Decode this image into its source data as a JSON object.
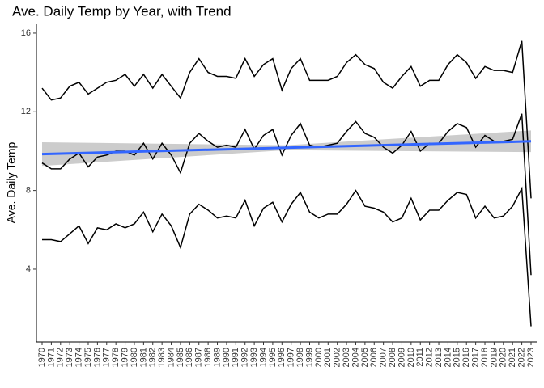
{
  "chart_data": {
    "type": "line",
    "title": "Ave. Daily Temp by Year, with Trend",
    "y_label": "Ave. Daily Temp",
    "categories": [
      "1970",
      "1971",
      "1972",
      "1973",
      "1974",
      "1975",
      "1976",
      "1977",
      "1978",
      "1979",
      "1980",
      "1981",
      "1982",
      "1983",
      "1984",
      "1985",
      "1986",
      "1987",
      "1988",
      "1989",
      "1990",
      "1991",
      "1992",
      "1993",
      "1994",
      "1995",
      "1996",
      "1997",
      "1998",
      "1999",
      "2000",
      "2001",
      "2002",
      "2003",
      "2004",
      "2005",
      "2006",
      "2007",
      "2008",
      "2009",
      "2010",
      "2011",
      "2012",
      "2013",
      "2014",
      "2015",
      "2016",
      "2017",
      "2018",
      "2019",
      "2020",
      "2021",
      "2022",
      "2023"
    ],
    "series": [
      {
        "color": "#000000",
        "values": [
          13.2,
          12.6,
          12.7,
          13.3,
          13.5,
          12.9,
          13.2,
          13.5,
          13.6,
          13.9,
          13.3,
          13.9,
          13.2,
          13.9,
          13.3,
          12.7,
          14.0,
          14.7,
          14.0,
          13.8,
          13.8,
          13.7,
          14.7,
          13.8,
          14.4,
          14.7,
          13.1,
          14.2,
          14.7,
          13.6,
          13.6,
          13.6,
          13.8,
          14.5,
          14.9,
          14.4,
          14.2,
          13.5,
          13.2,
          13.8,
          14.3,
          13.3,
          13.6,
          13.6,
          14.4,
          14.9,
          14.5,
          13.7,
          14.3,
          14.1,
          14.1,
          14.0,
          15.6,
          7.6
        ]
      },
      {
        "color": "#000000",
        "values": [
          9.4,
          9.1,
          9.1,
          9.6,
          9.9,
          9.2,
          9.7,
          9.8,
          10.0,
          10.0,
          9.8,
          10.4,
          9.6,
          10.4,
          9.8,
          8.9,
          10.4,
          10.9,
          10.5,
          10.2,
          10.3,
          10.2,
          11.1,
          10.1,
          10.8,
          11.1,
          9.8,
          10.8,
          11.4,
          10.3,
          10.2,
          10.3,
          10.4,
          11.0,
          11.5,
          10.9,
          10.7,
          10.2,
          9.9,
          10.3,
          11.0,
          10.0,
          10.4,
          10.4,
          11.0,
          11.4,
          11.2,
          10.2,
          10.8,
          10.5,
          10.5,
          10.6,
          11.9,
          3.7
        ]
      },
      {
        "color": "#000000",
        "values": [
          5.5,
          5.5,
          5.4,
          5.8,
          6.2,
          5.3,
          6.1,
          6.0,
          6.3,
          6.1,
          6.3,
          6.9,
          5.9,
          6.8,
          6.2,
          5.1,
          6.8,
          7.3,
          7.0,
          6.6,
          6.7,
          6.6,
          7.5,
          6.2,
          7.1,
          7.4,
          6.4,
          7.3,
          7.9,
          6.9,
          6.6,
          6.8,
          6.8,
          7.3,
          8.0,
          7.2,
          7.1,
          6.9,
          6.4,
          6.6,
          7.6,
          6.5,
          7.0,
          7.0,
          7.5,
          7.9,
          7.8,
          6.6,
          7.2,
          6.6,
          6.7,
          7.2,
          8.1,
          1.1
        ]
      }
    ],
    "trend": {
      "color": "#3366ff",
      "band_color": "#cccccc",
      "values": [
        9.85,
        10.5
      ],
      "band_lower": [
        9.25,
        10.05,
        9.95
      ],
      "band_upper": [
        10.45,
        10.3,
        11.05
      ]
    },
    "ylim": [
      0.3,
      16.45
    ],
    "yticks": [
      4,
      8,
      12,
      16
    ]
  }
}
